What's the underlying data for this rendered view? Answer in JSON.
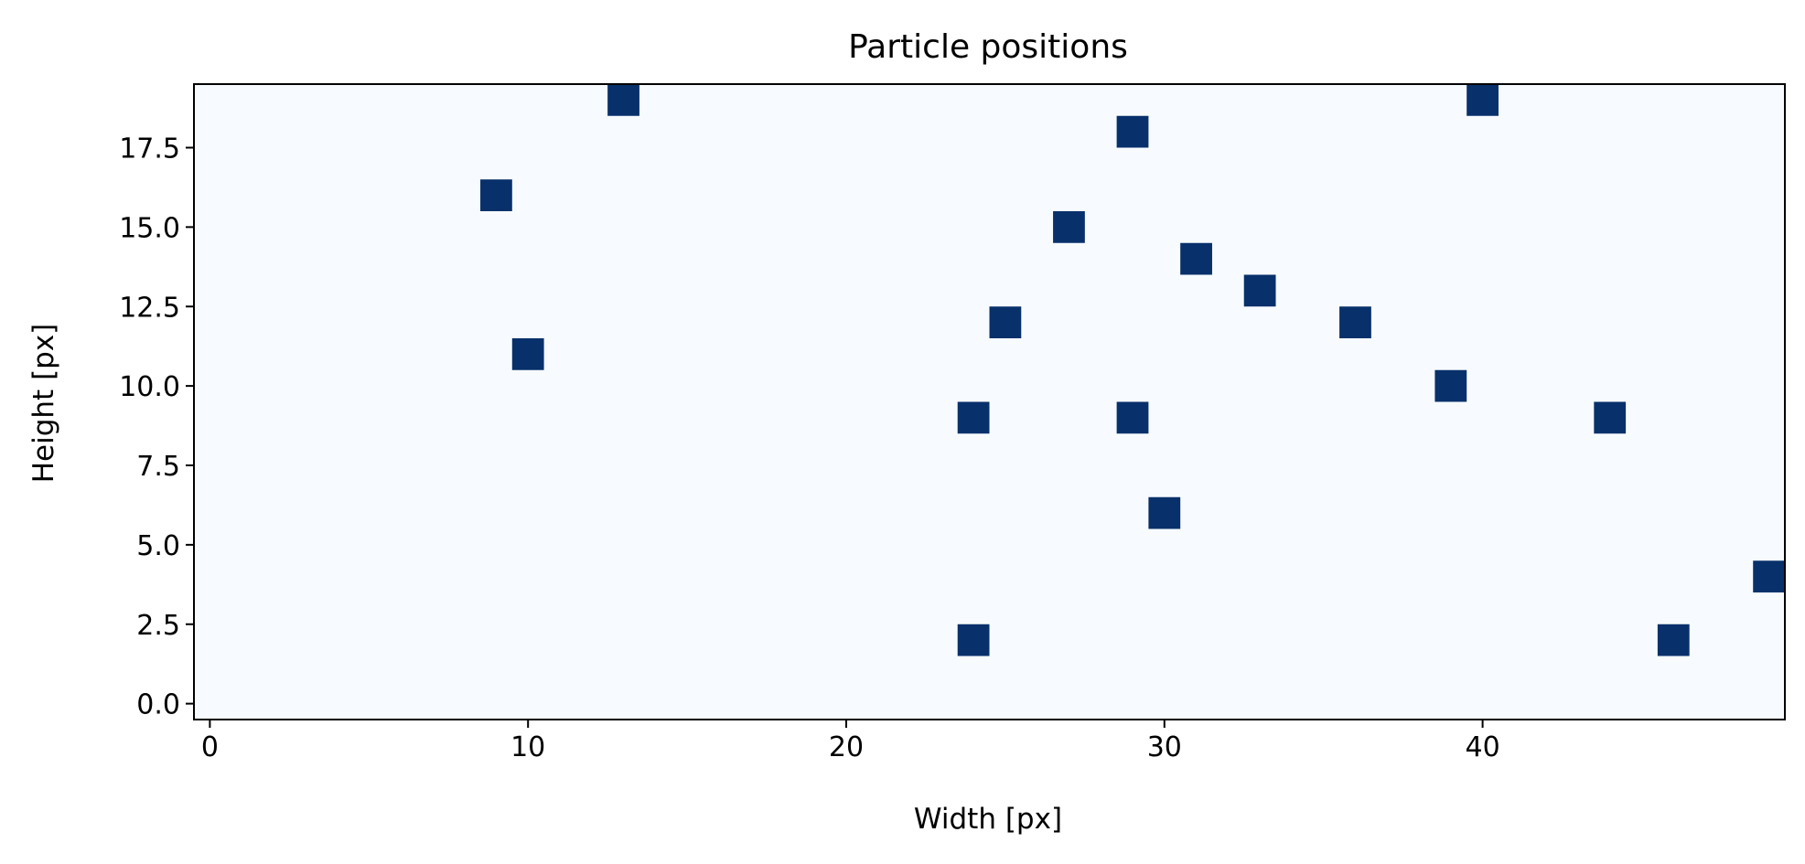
{
  "chart_data": {
    "type": "heatmap",
    "title": "Particle positions",
    "xlabel": "Width [px]",
    "ylabel": "Height [px]",
    "xlim": [
      -0.5,
      49.5
    ],
    "ylim": [
      -0.5,
      19.5
    ],
    "grid": false,
    "legend": "none",
    "background_color": "#f7fbff",
    "particle_color": "#08306b",
    "x_ticks": [
      0,
      10,
      20,
      30,
      40
    ],
    "x_tick_labels": [
      "0",
      "10",
      "20",
      "30",
      "40"
    ],
    "y_ticks": [
      0,
      2.5,
      5,
      7.5,
      10,
      12.5,
      15,
      17.5
    ],
    "y_tick_labels": [
      "0.0",
      "2.5",
      "5.0",
      "7.5",
      "10.0",
      "12.5",
      "15.0",
      "17.5"
    ],
    "points": [
      {
        "x": 13,
        "y": 19
      },
      {
        "x": 40,
        "y": 19
      },
      {
        "x": 29,
        "y": 18
      },
      {
        "x": 9,
        "y": 16
      },
      {
        "x": 27,
        "y": 15
      },
      {
        "x": 31,
        "y": 14
      },
      {
        "x": 33,
        "y": 13
      },
      {
        "x": 25,
        "y": 12
      },
      {
        "x": 36,
        "y": 12
      },
      {
        "x": 10,
        "y": 11
      },
      {
        "x": 39,
        "y": 10
      },
      {
        "x": 24,
        "y": 9
      },
      {
        "x": 29,
        "y": 9
      },
      {
        "x": 44,
        "y": 9
      },
      {
        "x": 30,
        "y": 6
      },
      {
        "x": 49,
        "y": 4
      },
      {
        "x": 24,
        "y": 2
      },
      {
        "x": 46,
        "y": 2
      }
    ]
  }
}
